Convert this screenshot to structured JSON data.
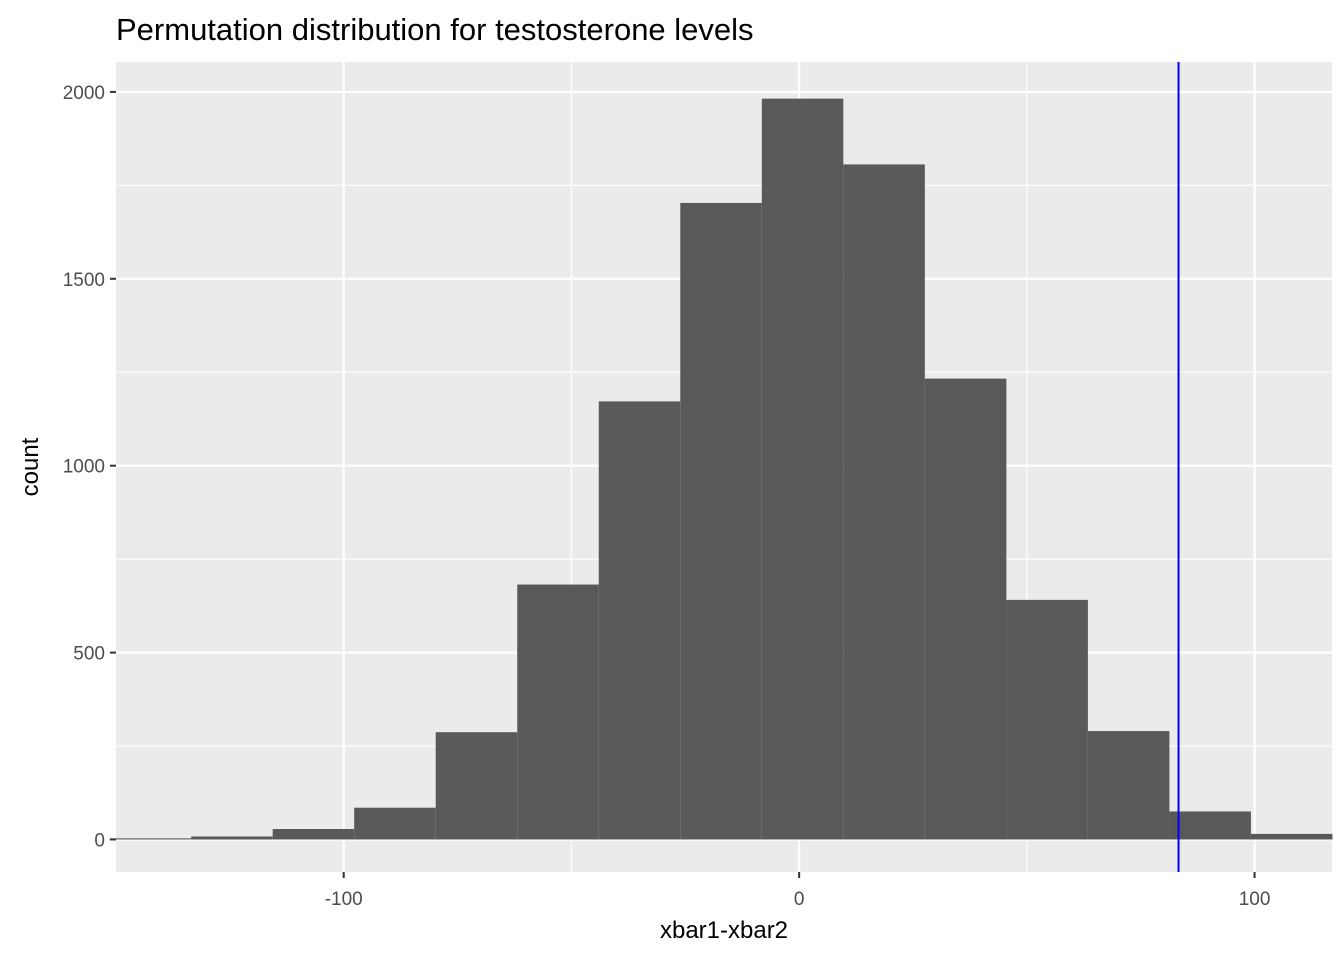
{
  "chart_data": {
    "type": "bar",
    "title": "Permutation distribution for testosterone levels",
    "xlabel": "xbar1-xbar2",
    "ylabel": "count",
    "xlim": [
      -150,
      117
    ],
    "ylim": [
      -87,
      2080
    ],
    "x_ticks": [
      -100,
      0,
      100
    ],
    "x_tick_labels": [
      "-100",
      "0",
      "100"
    ],
    "y_ticks": [
      0,
      500,
      1000,
      1500,
      2000
    ],
    "y_tick_labels": [
      "0",
      "500",
      "1000",
      "1500",
      "2000"
    ],
    "grid": true,
    "legend": "none",
    "bin_width": 17.9,
    "bins": [
      {
        "x0": -151.4,
        "x1": -133.5,
        "count": 3
      },
      {
        "x0": -133.5,
        "x1": -115.6,
        "count": 8
      },
      {
        "x0": -115.6,
        "x1": -97.7,
        "count": 28
      },
      {
        "x0": -97.7,
        "x1": -79.8,
        "count": 85
      },
      {
        "x0": -79.8,
        "x1": -61.9,
        "count": 287
      },
      {
        "x0": -61.9,
        "x1": -44.0,
        "count": 682
      },
      {
        "x0": -44.0,
        "x1": -26.1,
        "count": 1172
      },
      {
        "x0": -26.1,
        "x1": -8.2,
        "count": 1703
      },
      {
        "x0": -8.2,
        "x1": 9.7,
        "count": 1982
      },
      {
        "x0": 9.7,
        "x1": 27.6,
        "count": 1806
      },
      {
        "x0": 27.6,
        "x1": 45.5,
        "count": 1233
      },
      {
        "x0": 45.5,
        "x1": 63.4,
        "count": 641
      },
      {
        "x0": 63.4,
        "x1": 81.3,
        "count": 290
      },
      {
        "x0": 81.3,
        "x1": 99.2,
        "count": 75
      },
      {
        "x0": 99.2,
        "x1": 117.1,
        "count": 15
      }
    ],
    "reference_line": {
      "x": 83.3,
      "color": "#0000ff"
    },
    "colors": {
      "bar": "#595959",
      "panel_background": "#ebebeb",
      "grid": "#ffffff",
      "tick_text": "#4d4d4d",
      "tick_mark": "#333333"
    }
  }
}
